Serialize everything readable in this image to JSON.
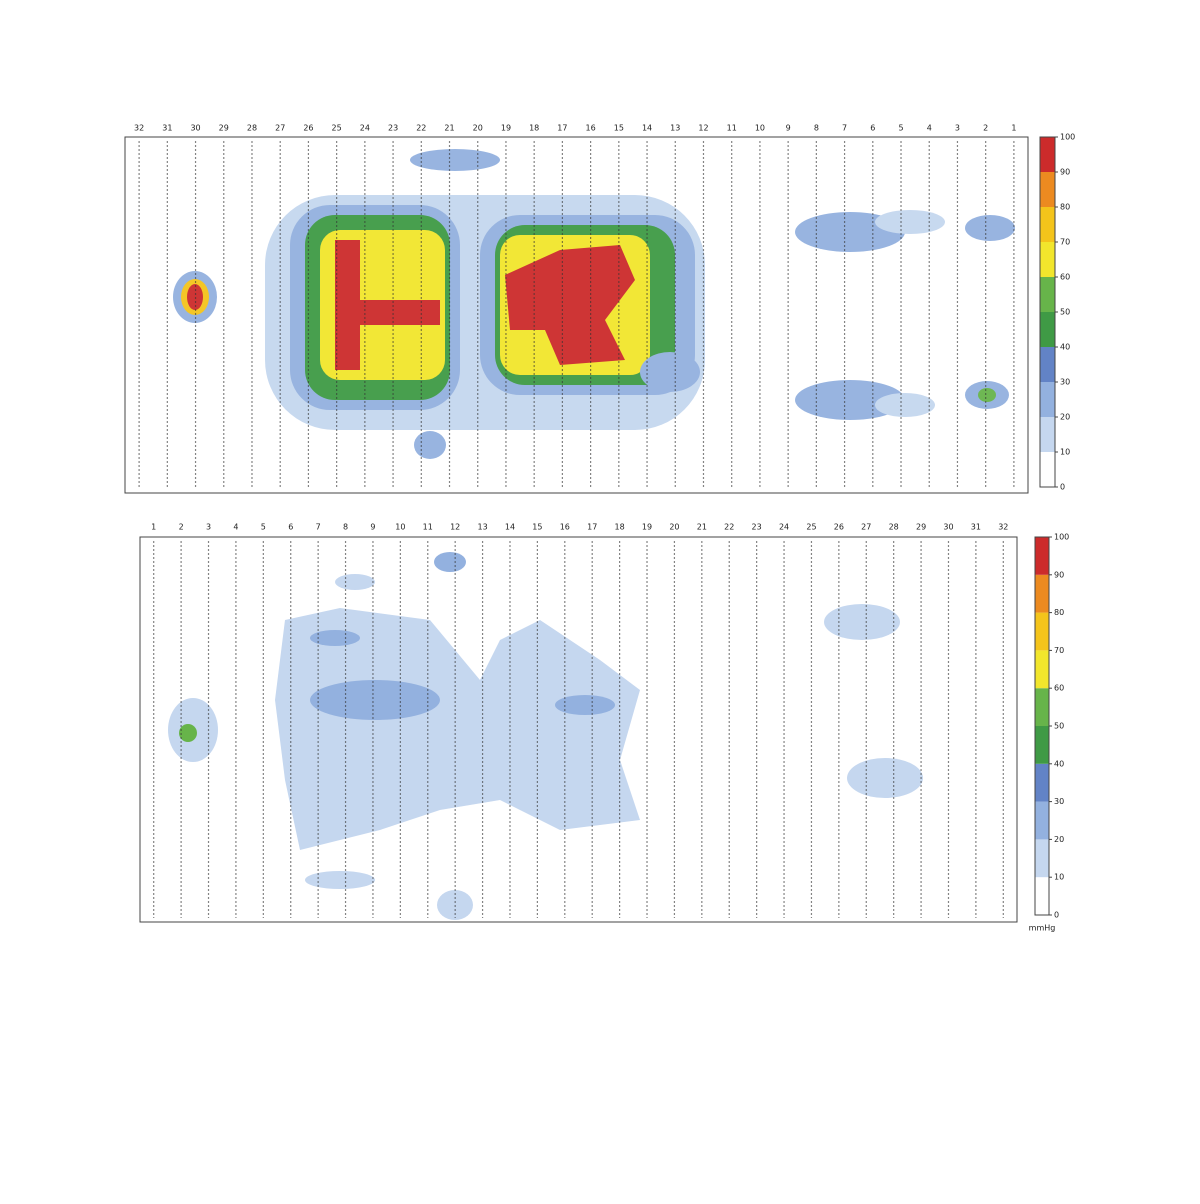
{
  "panels": [
    {
      "columns": [
        32,
        31,
        30,
        29,
        28,
        27,
        26,
        25,
        24,
        23,
        22,
        21,
        20,
        19,
        18,
        17,
        16,
        15,
        14,
        13,
        12,
        11,
        10,
        9,
        8,
        7,
        6,
        5,
        4,
        3,
        2,
        1
      ],
      "colorbar": {
        "ticks": [
          0,
          10,
          20,
          30,
          40,
          50,
          60,
          70,
          80,
          90,
          100
        ],
        "colors": [
          "#ffffff",
          "#c5d7ef",
          "#93b1df",
          "#6283c6",
          "#3f9a45",
          "#67b44a",
          "#f2e62c",
          "#f4c41b",
          "#ec8a20",
          "#cc2b2b"
        ]
      }
    },
    {
      "columns": [
        1,
        2,
        3,
        4,
        5,
        6,
        7,
        8,
        9,
        10,
        11,
        12,
        13,
        14,
        15,
        16,
        17,
        18,
        19,
        20,
        21,
        22,
        23,
        24,
        25,
        26,
        27,
        28,
        29,
        30,
        31,
        32
      ],
      "colorbar": {
        "ticks": [
          0,
          10,
          20,
          30,
          40,
          50,
          60,
          70,
          80,
          90,
          100
        ],
        "colors": [
          "#ffffff",
          "#c5d7ef",
          "#93b1df",
          "#6283c6",
          "#3f9a45",
          "#67b44a",
          "#f2e62c",
          "#f4c41b",
          "#ec8a20",
          "#cc2b2b"
        ],
        "unit": "mmHg"
      }
    }
  ]
}
